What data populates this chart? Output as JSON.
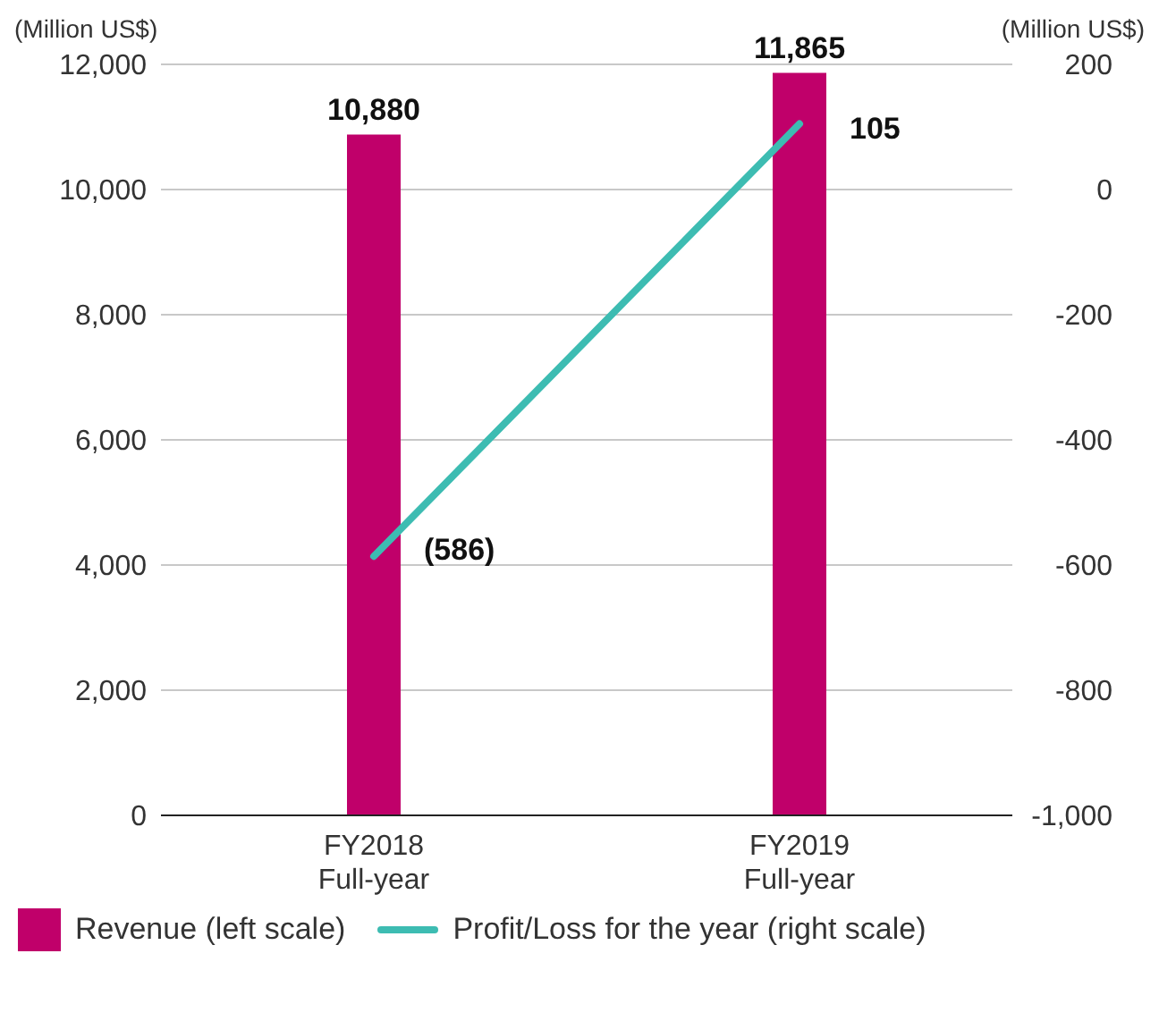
{
  "chart_data": {
    "type": "bar",
    "ylabel": "(Million US$)",
    "y2label": "(Million US$)",
    "categories": [
      "FY2018\nFull-year",
      "FY2019\nFull-year"
    ],
    "series": [
      {
        "name": "Revenue (left scale)",
        "color": "#c0006a",
        "values": [
          10880,
          11865
        ],
        "value_labels": [
          "10,880",
          "11,865"
        ]
      },
      {
        "name": "Profit/Loss for the year (right scale)",
        "type": "line",
        "axis": "y2",
        "color": "#3dbcb2",
        "values": [
          -586,
          105
        ],
        "value_labels": [
          "(586)",
          "105"
        ]
      }
    ],
    "ylim": [
      0,
      12000
    ],
    "yticks": [
      0,
      {
        "value": 2000,
        "label": "2,000"
      },
      {
        "value": 4000,
        "label": "4,000"
      },
      {
        "value": 6000,
        "label": "6,000"
      },
      {
        "value": 8000,
        "label": "8,000"
      },
      {
        "value": 10000,
        "label": "10,000"
      },
      {
        "value": 12000,
        "label": "12,000"
      }
    ],
    "y2lim": [
      -1000,
      200
    ],
    "y2ticks": [
      {
        "value": -1000,
        "label": "-1,000"
      },
      -800,
      -600,
      -400,
      -200,
      0,
      200
    ],
    "grid": "y",
    "legend": "bottom",
    "marker": "none",
    "line_style": "solid"
  }
}
